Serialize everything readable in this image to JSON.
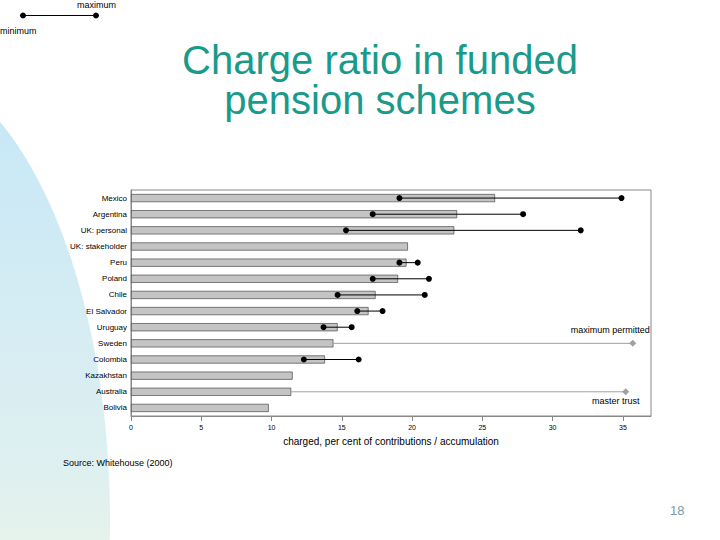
{
  "chart_data": {
    "type": "bar",
    "title": "Charge ratio in funded pension schemes",
    "source": "Source: Whitehouse (2000)",
    "page": 18,
    "orientation": "horizontal",
    "xlabel": "charged, per cent of contributions / accumulation",
    "categories": [
      "Mexico",
      "Argentina",
      "UK: personal",
      "UK: stakeholder",
      "Peru",
      "Poland",
      "Chile",
      "El Salvador",
      "Uruguay",
      "Sweden",
      "Colombia",
      "Kazakhstan",
      "Australia",
      "Bolivia"
    ],
    "series": [
      {
        "type": "bar",
        "color": "#c4c4c4",
        "values": [
          25.9,
          23.2,
          23.0,
          19.7,
          19.6,
          19.0,
          17.4,
          16.9,
          14.7,
          14.4,
          13.8,
          11.5,
          11.4,
          9.8
        ]
      },
      {
        "type": "range",
        "color": "#000000",
        "marker": "circle",
        "labels": {
          "minimum": "minimum",
          "maximum": "maximum"
        },
        "minimum": [
          19.1,
          17.2,
          15.3,
          null,
          19.1,
          17.2,
          14.7,
          16.1,
          13.7,
          null,
          12.3,
          null,
          null,
          null
        ],
        "maximum": [
          34.9,
          27.9,
          32.0,
          null,
          20.4,
          21.2,
          20.9,
          17.9,
          15.7,
          null,
          16.2,
          null,
          null,
          null
        ]
      },
      {
        "type": "point",
        "color": "#a0a0a0",
        "marker": "diamond",
        "label": "maximum permitted",
        "values": [
          null,
          null,
          null,
          null,
          null,
          null,
          null,
          null,
          null,
          35.7,
          null,
          null,
          null,
          null
        ]
      },
      {
        "type": "point",
        "color": "#a0a0a0",
        "marker": "diamond",
        "label": "master trust",
        "values": [
          null,
          null,
          null,
          null,
          null,
          null,
          null,
          null,
          null,
          null,
          null,
          null,
          35.2,
          null
        ]
      }
    ],
    "xlim": [
      0,
      37
    ],
    "xticks": [
      0,
      5,
      10,
      15,
      20,
      25,
      30,
      35
    ],
    "grid": false
  }
}
